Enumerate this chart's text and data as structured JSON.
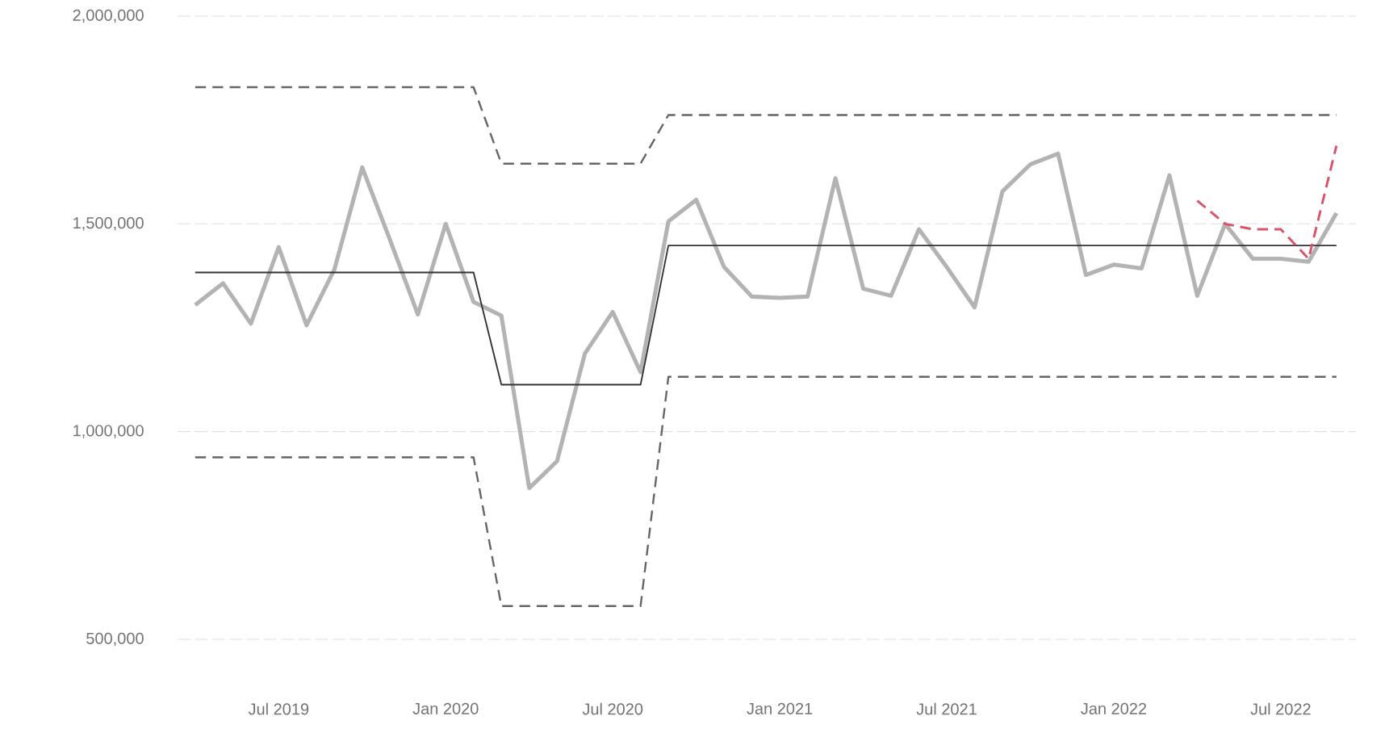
{
  "chart_data": {
    "type": "line",
    "x": [
      "2019-04",
      "2019-05",
      "2019-06",
      "2019-07",
      "2019-08",
      "2019-09",
      "2019-10",
      "2019-11",
      "2019-12",
      "2020-01",
      "2020-02",
      "2020-03",
      "2020-04",
      "2020-05",
      "2020-06",
      "2020-07",
      "2020-08",
      "2020-09",
      "2020-10",
      "2020-11",
      "2020-12",
      "2021-01",
      "2021-02",
      "2021-03",
      "2021-04",
      "2021-05",
      "2021-06",
      "2021-07",
      "2021-08",
      "2021-09",
      "2021-10",
      "2021-11",
      "2021-12",
      "2022-01",
      "2022-02",
      "2022-03",
      "2022-04",
      "2022-05",
      "2022-06",
      "2022-07",
      "2022-08",
      "2022-09"
    ],
    "series": [
      {
        "color": "#b3b3b3",
        "line_style": "solid",
        "values": [
          1305000,
          1357000,
          1260000,
          1444000,
          1256000,
          1390000,
          1636000,
          1461000,
          1282000,
          1500000,
          1312000,
          1279000,
          864000,
          929000,
          1188000,
          1288000,
          1143000,
          1506000,
          1558000,
          1396000,
          1325000,
          1322000,
          1325000,
          1610000,
          1344000,
          1327000,
          1487000,
          1396000,
          1299000,
          1578000,
          1643000,
          1669000,
          1377000,
          1402000,
          1393000,
          1617000,
          1327000,
          1500000,
          1416000,
          1416000,
          1409000,
          1526000
        ]
      },
      {
        "color": "#333333",
        "line_style": "solid",
        "values": [
          1383000,
          1383000,
          1383000,
          1383000,
          1383000,
          1383000,
          1383000,
          1383000,
          1383000,
          1383000,
          1383000,
          1113000,
          1113000,
          1113000,
          1113000,
          1113000,
          1113000,
          1448000,
          1448000,
          1448000,
          1448000,
          1448000,
          1448000,
          1448000,
          1448000,
          1448000,
          1448000,
          1448000,
          1448000,
          1448000,
          1448000,
          1448000,
          1448000,
          1448000,
          1448000,
          1448000,
          1448000,
          1448000,
          1448000,
          1448000,
          1448000,
          1448000
        ]
      },
      {
        "color": "#666666",
        "line_style": "dashed",
        "values": [
          1829000,
          1829000,
          1829000,
          1829000,
          1829000,
          1829000,
          1829000,
          1829000,
          1829000,
          1829000,
          1829000,
          1645000,
          1645000,
          1645000,
          1645000,
          1645000,
          1645000,
          1762000,
          1762000,
          1762000,
          1762000,
          1762000,
          1762000,
          1762000,
          1762000,
          1762000,
          1762000,
          1762000,
          1762000,
          1762000,
          1762000,
          1762000,
          1762000,
          1762000,
          1762000,
          1762000,
          1762000,
          1762000,
          1762000,
          1762000,
          1762000,
          1762000
        ]
      },
      {
        "color": "#666666",
        "line_style": "dashed",
        "values": [
          938000,
          938000,
          938000,
          938000,
          938000,
          938000,
          938000,
          938000,
          938000,
          938000,
          938000,
          580000,
          580000,
          580000,
          580000,
          580000,
          580000,
          1132000,
          1132000,
          1132000,
          1132000,
          1132000,
          1132000,
          1132000,
          1132000,
          1132000,
          1132000,
          1132000,
          1132000,
          1132000,
          1132000,
          1132000,
          1132000,
          1132000,
          1132000,
          1132000,
          1132000,
          1132000,
          1132000,
          1132000,
          1132000,
          1132000
        ]
      },
      {
        "color": "#d9536b",
        "line_style": "dashed",
        "x": [
          "2022-04",
          "2022-05",
          "2022-06",
          "2022-07",
          "2022-08",
          "2022-09"
        ],
        "values": [
          1556000,
          1500000,
          1487000,
          1487000,
          1416000,
          1688000
        ]
      }
    ],
    "xlim": [
      "2019-03-12",
      "2022-09-22"
    ],
    "ylim": [
      500000,
      2000000
    ],
    "xticks": [
      {
        "value": "2019-07",
        "label": "Jul 2019"
      },
      {
        "value": "2020-01",
        "label": "Jan 2020"
      },
      {
        "value": "2020-07",
        "label": "Jul 2020"
      },
      {
        "value": "2021-01",
        "label": "Jan 2021"
      },
      {
        "value": "2021-07",
        "label": "Jul 2021"
      },
      {
        "value": "2022-01",
        "label": "Jan 2022"
      },
      {
        "value": "2022-07",
        "label": "Jul 2022"
      }
    ],
    "yticks": [
      {
        "value": 500000,
        "label": "500,000"
      },
      {
        "value": 1000000,
        "label": "1,000,000"
      },
      {
        "value": 1500000,
        "label": "1,500,000"
      },
      {
        "value": 2000000,
        "label": "2,000,000"
      }
    ],
    "grid": "y",
    "legend": false,
    "marker": "none"
  }
}
